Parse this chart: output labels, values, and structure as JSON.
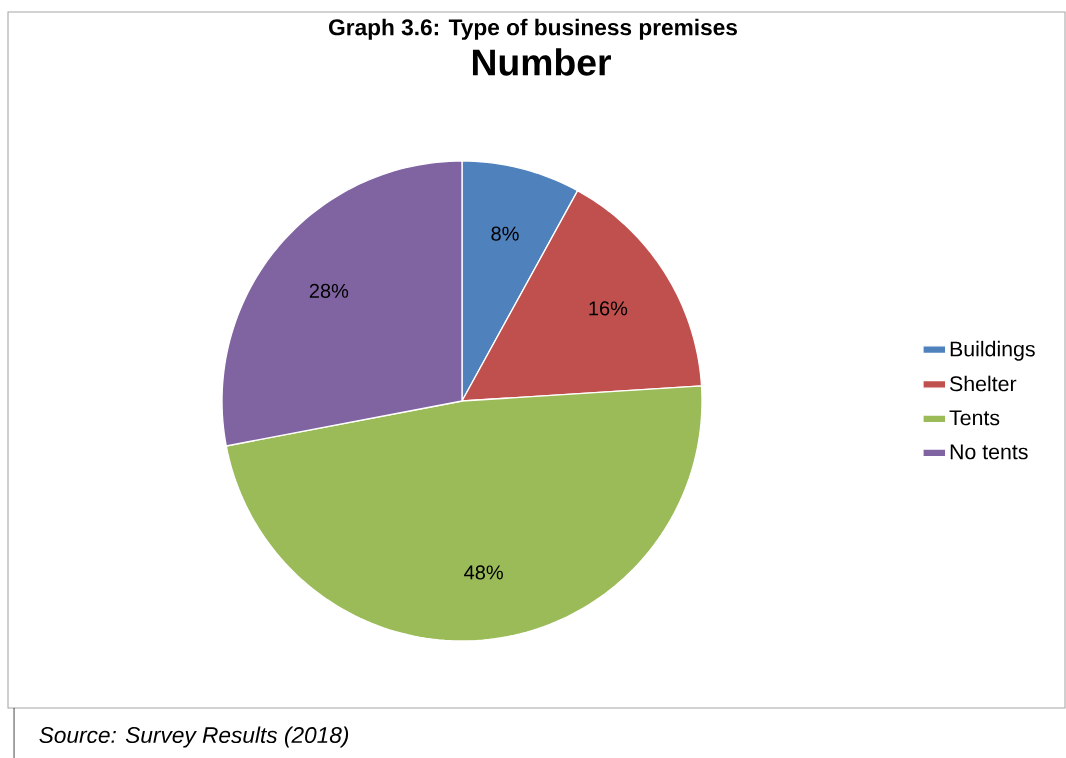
{
  "chart_data": {
    "type": "pie",
    "title": "Number",
    "categories": [
      "Buildings",
      "Shelter",
      "Tents",
      "No tents"
    ],
    "values": [
      8,
      16,
      48,
      28
    ],
    "value_labels": [
      "8%",
      "16%",
      "48%",
      "28%"
    ],
    "colors": [
      "#4f81bd",
      "#c0504d",
      "#9bbb59",
      "#8064a2"
    ],
    "legend": "right",
    "annotations": [
      "Graph 3.6: Type of business premises",
      "Source: Survey Results (2018)"
    ]
  }
}
